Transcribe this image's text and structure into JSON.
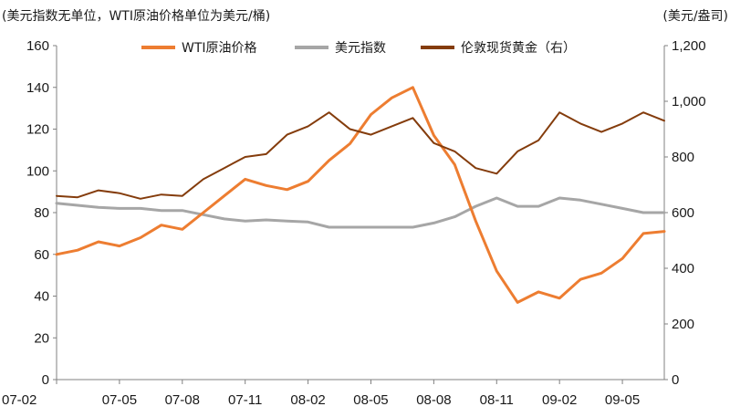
{
  "chart_data": {
    "type": "line",
    "left_axis_title": "(美元指数无单位，WTI原油价格单位为美元/桶)",
    "right_axis_title": "(美元/盎司)",
    "y_left_range": [
      0,
      160
    ],
    "y_left_ticks": [
      "0",
      "20",
      "40",
      "60",
      "80",
      "100",
      "120",
      "140",
      "160"
    ],
    "y_right_range": [
      0,
      1200
    ],
    "y_right_ticks": [
      "0",
      "200",
      "400",
      "600",
      "800",
      "1,000",
      "1,200"
    ],
    "x_range": [
      "2007-02",
      "2009-07"
    ],
    "x_ticks": [
      "07-02",
      "07-05",
      "07-08",
      "07-11",
      "08-02",
      "08-05",
      "08-08",
      "08-11",
      "09-02",
      "09-05"
    ],
    "grid": false,
    "legend_position": "top",
    "series": [
      {
        "name": "WTI原油价格",
        "axis": "left",
        "color": "#ed7d31",
        "x": [
          "2007-02",
          "2007-03",
          "2007-04",
          "2007-05",
          "2007-06",
          "2007-07",
          "2007-08",
          "2007-09",
          "2007-10",
          "2007-11",
          "2007-12",
          "2008-01",
          "2008-02",
          "2008-03",
          "2008-04",
          "2008-05",
          "2008-06",
          "2008-07",
          "2008-08",
          "2008-09",
          "2008-10",
          "2008-11",
          "2008-12",
          "2009-01",
          "2009-02",
          "2009-03",
          "2009-04",
          "2009-05",
          "2009-06",
          "2009-07"
        ],
        "values": [
          60,
          62,
          66,
          64,
          68,
          74,
          72,
          80,
          88,
          96,
          93,
          91,
          95,
          105,
          113,
          127,
          135,
          140,
          117,
          103,
          76,
          52,
          37,
          42,
          39,
          48,
          51,
          58,
          70,
          71
        ]
      },
      {
        "name": "美元指数",
        "axis": "left",
        "color": "#a6a6a6",
        "x": [
          "2007-02",
          "2007-03",
          "2007-04",
          "2007-05",
          "2007-06",
          "2007-07",
          "2007-08",
          "2007-09",
          "2007-10",
          "2007-11",
          "2007-12",
          "2008-01",
          "2008-02",
          "2008-03",
          "2008-04",
          "2008-05",
          "2008-06",
          "2008-07",
          "2008-08",
          "2008-09",
          "2008-10",
          "2008-11",
          "2008-12",
          "2009-01",
          "2009-02",
          "2009-03",
          "2009-04",
          "2009-05",
          "2009-06",
          "2009-07"
        ],
        "values": [
          84.5,
          83.5,
          82.5,
          82,
          82,
          81,
          81,
          79,
          77,
          76,
          76.5,
          76,
          75.5,
          73,
          73,
          73,
          73,
          73,
          75,
          78,
          83,
          87,
          83,
          83,
          87,
          86,
          84,
          82,
          80,
          80
        ]
      },
      {
        "name": "伦敦现货黄金（右）",
        "axis": "right",
        "color": "#843c0c",
        "x": [
          "2007-02",
          "2007-03",
          "2007-04",
          "2007-05",
          "2007-06",
          "2007-07",
          "2007-08",
          "2007-09",
          "2007-10",
          "2007-11",
          "2007-12",
          "2008-01",
          "2008-02",
          "2008-03",
          "2008-04",
          "2008-05",
          "2008-06",
          "2008-07",
          "2008-08",
          "2008-09",
          "2008-10",
          "2008-11",
          "2008-12",
          "2009-01",
          "2009-02",
          "2009-03",
          "2009-04",
          "2009-05",
          "2009-06",
          "2009-07"
        ],
        "values": [
          660,
          655,
          680,
          670,
          650,
          665,
          660,
          720,
          760,
          800,
          810,
          880,
          910,
          960,
          900,
          880,
          910,
          940,
          850,
          820,
          760,
          740,
          820,
          860,
          960,
          920,
          890,
          920,
          960,
          930
        ]
      }
    ]
  }
}
